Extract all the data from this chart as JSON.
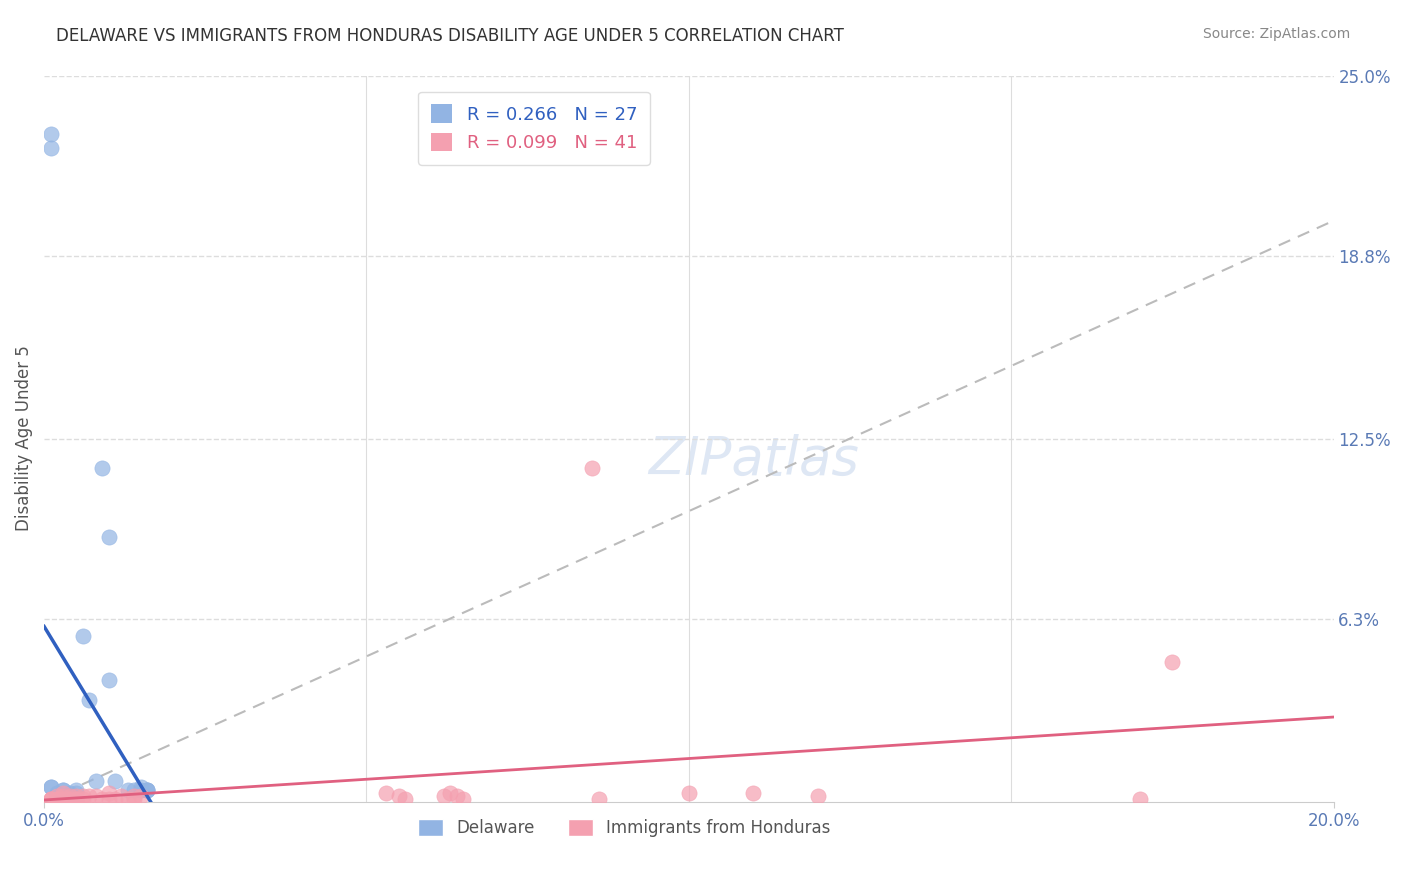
{
  "title": "DELAWARE VS IMMIGRANTS FROM HONDURAS DISABILITY AGE UNDER 5 CORRELATION CHART",
  "source": "Source: ZipAtlas.com",
  "xlabel": "",
  "ylabel": "Disability Age Under 5",
  "xlim": [
    0.0,
    0.2
  ],
  "ylim": [
    0.0,
    0.25
  ],
  "xticks": [
    0.0,
    0.05,
    0.1,
    0.15,
    0.2
  ],
  "xticklabels": [
    "0.0%",
    "",
    "",
    "",
    "20.0%"
  ],
  "ytick_right": [
    0.0,
    0.063,
    0.125,
    0.188,
    0.25
  ],
  "ytick_right_labels": [
    "",
    "6.3%",
    "12.5%",
    "18.8%",
    "25.0%"
  ],
  "delaware_R": 0.266,
  "delaware_N": 27,
  "honduras_R": 0.099,
  "honduras_N": 41,
  "delaware_color": "#92b4e3",
  "honduras_color": "#f4a0b0",
  "delaware_line_color": "#3060c0",
  "honduras_line_color": "#e06080",
  "reference_line_color": "#bbbbbb",
  "delaware_x": [
    0.001,
    0.001,
    0.002,
    0.003,
    0.003,
    0.004,
    0.005,
    0.005,
    0.005,
    0.005,
    0.005,
    0.006,
    0.007,
    0.008,
    0.009,
    0.01,
    0.01,
    0.011,
    0.013,
    0.014,
    0.015,
    0.015,
    0.016,
    0.016,
    0.016,
    0.001,
    0.001
  ],
  "delaware_y": [
    0.005,
    0.005,
    0.003,
    0.004,
    0.004,
    0.003,
    0.001,
    0.001,
    0.003,
    0.004,
    0.001,
    0.057,
    0.035,
    0.007,
    0.115,
    0.042,
    0.091,
    0.007,
    0.004,
    0.004,
    0.004,
    0.005,
    0.004,
    0.004,
    0.004,
    0.23,
    0.225
  ],
  "honduras_x": [
    0.001,
    0.001,
    0.001,
    0.002,
    0.002,
    0.002,
    0.003,
    0.003,
    0.003,
    0.004,
    0.004,
    0.005,
    0.005,
    0.005,
    0.006,
    0.006,
    0.007,
    0.008,
    0.009,
    0.01,
    0.01,
    0.011,
    0.012,
    0.013,
    0.014,
    0.014,
    0.015,
    0.053,
    0.055,
    0.056,
    0.062,
    0.063,
    0.064,
    0.065,
    0.085,
    0.086,
    0.1,
    0.11,
    0.12,
    0.17,
    0.175
  ],
  "honduras_y": [
    0.001,
    0.001,
    0.001,
    0.001,
    0.001,
    0.002,
    0.001,
    0.002,
    0.003,
    0.001,
    0.002,
    0.001,
    0.002,
    0.001,
    0.002,
    0.001,
    0.002,
    0.002,
    0.001,
    0.001,
    0.003,
    0.001,
    0.002,
    0.001,
    0.002,
    0.001,
    0.002,
    0.003,
    0.002,
    0.001,
    0.002,
    0.003,
    0.002,
    0.001,
    0.115,
    0.001,
    0.003,
    0.003,
    0.002,
    0.001,
    0.048
  ],
  "watermark": "ZIPatlas",
  "background_color": "#ffffff",
  "grid_color": "#dddddd"
}
